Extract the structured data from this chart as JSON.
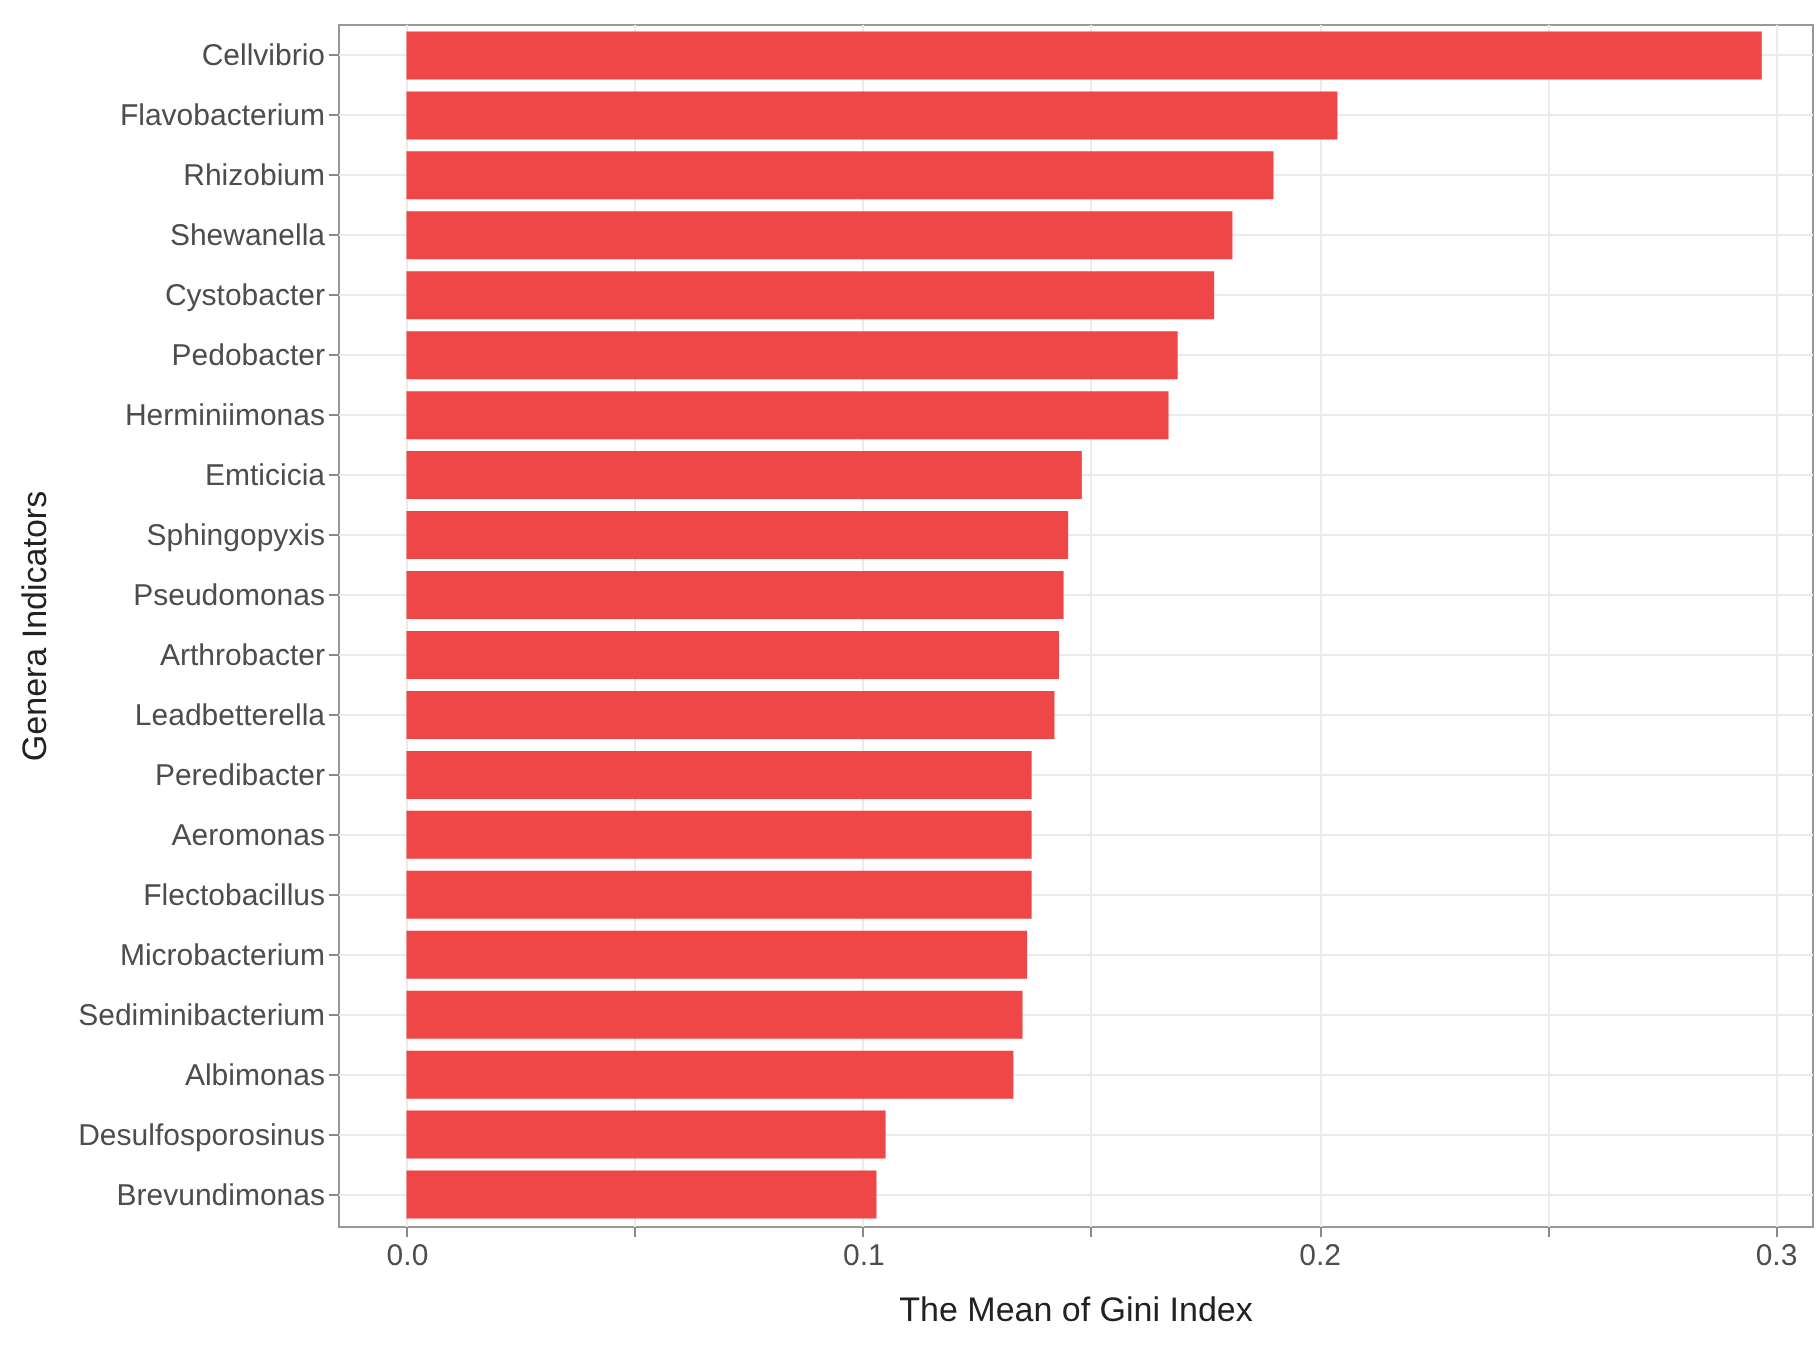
{
  "chart_data": {
    "type": "bar",
    "orientation": "horizontal",
    "xlabel": "The Mean of Gini Index",
    "ylabel": "Genera Indicators",
    "categories": [
      "Cellvibrio",
      "Flavobacterium",
      "Rhizobium",
      "Shewanella",
      "Cystobacter",
      "Pedobacter",
      "Herminiimonas",
      "Emticicia",
      "Sphingopyxis",
      "Pseudomonas",
      "Arthrobacter",
      "Leadbetterella",
      "Peredibacter",
      "Aeromonas",
      "Flectobacillus",
      "Microbacterium",
      "Sediminibacterium",
      "Albimonas",
      "Desulfosporosinus",
      "Brevundimonas"
    ],
    "values": [
      0.297,
      0.204,
      0.19,
      0.181,
      0.177,
      0.169,
      0.167,
      0.148,
      0.145,
      0.144,
      0.143,
      0.142,
      0.137,
      0.137,
      0.137,
      0.136,
      0.135,
      0.133,
      0.105,
      0.103
    ],
    "color": "#ef4747",
    "xlim": [
      -0.015,
      0.308
    ],
    "xticks": [
      {
        "value": 0,
        "label": "0.0"
      },
      {
        "value": 0.05,
        "label": null
      },
      {
        "value": 0.1,
        "label": "0.1"
      },
      {
        "value": 0.15,
        "label": null
      },
      {
        "value": 0.2,
        "label": "0.2"
      },
      {
        "value": 0.25,
        "label": null
      },
      {
        "value": 0.3,
        "label": "0.3"
      }
    ],
    "grid": true
  }
}
